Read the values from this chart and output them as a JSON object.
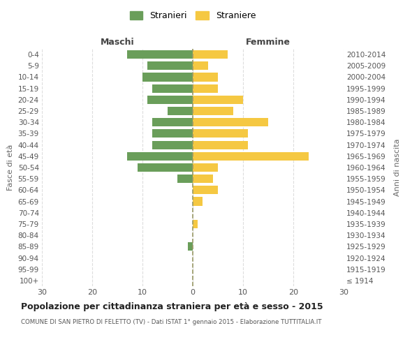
{
  "age_groups": [
    "100+",
    "95-99",
    "90-94",
    "85-89",
    "80-84",
    "75-79",
    "70-74",
    "65-69",
    "60-64",
    "55-59",
    "50-54",
    "45-49",
    "40-44",
    "35-39",
    "30-34",
    "25-29",
    "20-24",
    "15-19",
    "10-14",
    "5-9",
    "0-4"
  ],
  "birth_years": [
    "≤ 1914",
    "1915-1919",
    "1920-1924",
    "1925-1929",
    "1930-1934",
    "1935-1939",
    "1940-1944",
    "1945-1949",
    "1950-1954",
    "1955-1959",
    "1960-1964",
    "1965-1969",
    "1970-1974",
    "1975-1979",
    "1980-1984",
    "1985-1989",
    "1990-1994",
    "1995-1999",
    "2000-2004",
    "2005-2009",
    "2010-2014"
  ],
  "males": [
    0,
    0,
    0,
    1,
    0,
    0,
    0,
    0,
    0,
    3,
    11,
    13,
    8,
    8,
    8,
    5,
    9,
    8,
    10,
    9,
    13
  ],
  "females": [
    0,
    0,
    0,
    0,
    0,
    1,
    0,
    2,
    5,
    4,
    5,
    23,
    11,
    11,
    15,
    8,
    10,
    5,
    5,
    3,
    7
  ],
  "male_color": "#6a9e5a",
  "female_color": "#f5c842",
  "center_line_color": "#999966",
  "grid_color": "#dddddd",
  "background_color": "#ffffff",
  "title": "Popolazione per cittadinanza straniera per età e sesso - 2015",
  "subtitle": "COMUNE DI SAN PIETRO DI FELETTO (TV) - Dati ISTAT 1° gennaio 2015 - Elaborazione TUTTITALIA.IT",
  "ylabel_left": "Fasce di età",
  "ylabel_right": "Anni di nascita",
  "xlabel_left": "Maschi",
  "xlabel_right": "Femmine",
  "legend_stranieri": "Stranieri",
  "legend_straniere": "Straniere",
  "xlim": 30
}
